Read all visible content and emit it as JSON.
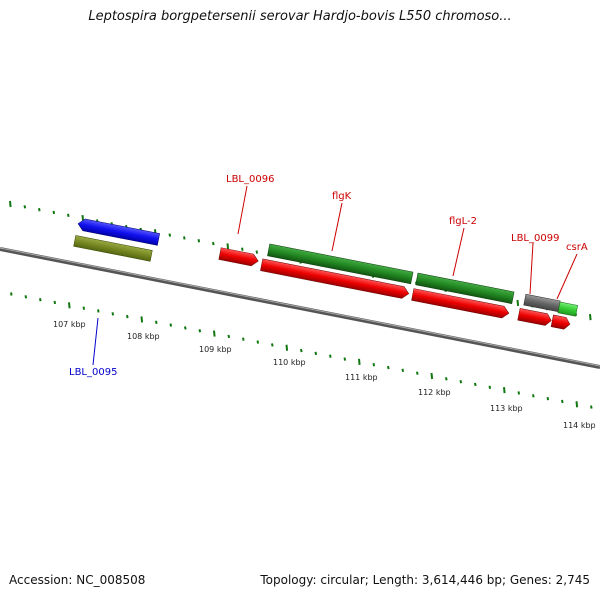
{
  "title": "Leptospira borgpetersenii serovar Hardjo-bovis L550 chromoso...",
  "footer": {
    "accession": "Accession: NC_008508",
    "topology": "Topology: circular; Length: 3,614,446 bp; Genes: 2,745"
  },
  "ticks": [
    "107 kbp",
    "108 kbp",
    "109 kbp",
    "110 kbp",
    "111 kbp",
    "112 kbp",
    "113 kbp",
    "114 kbp"
  ],
  "labels": {
    "lbl0096": "LBL_0096",
    "flgk": "flgK",
    "flgl2": "flgL-2",
    "lbl0099": "LBL_0099",
    "csra": "csrA",
    "lbl0095": "LBL_0095"
  },
  "colors": {
    "red_label": "#cc0000",
    "blue_label": "#0000cc",
    "cds_red": "#ee0000",
    "gene_green": "#228822",
    "blue": "#1111ee",
    "olive": "#778822",
    "gray": "#666666",
    "light_green": "#33cc33",
    "tick": "#117711",
    "backbone": "#777777"
  }
}
